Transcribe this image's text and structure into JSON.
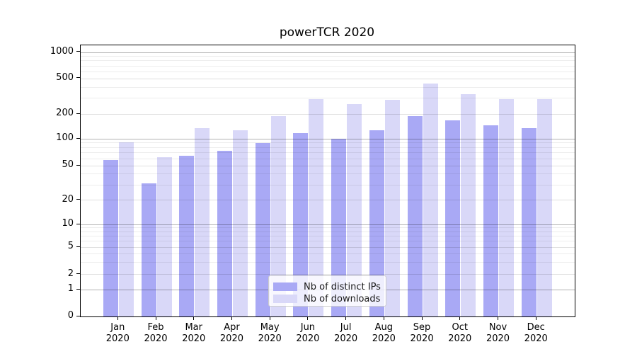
{
  "title": "powerTCR 2020",
  "chart_data": {
    "type": "bar",
    "title": "powerTCR 2020",
    "categories": [
      "Jan 2020",
      "Feb 2020",
      "Mar 2020",
      "Apr 2020",
      "May 2020",
      "Jun 2020",
      "Jul 2020",
      "Aug 2020",
      "Sep 2020",
      "Oct 2020",
      "Nov 2020",
      "Dec 2020"
    ],
    "series": [
      {
        "name": "Nb of distinct IPs",
        "color": "#a9a9f5",
        "values": [
          58,
          31,
          64,
          74,
          90,
          117,
          100,
          126,
          187,
          167,
          146,
          135
        ]
      },
      {
        "name": "Nb of downloads",
        "color": "#d9d8f8",
        "values": [
          92,
          62,
          135,
          128,
          190,
          295,
          260,
          290,
          440,
          334,
          293,
          292
        ]
      }
    ],
    "xlabel": "",
    "ylabel": "",
    "yscale": "symlog",
    "y_ticks": [
      0,
      1,
      2,
      5,
      10,
      20,
      50,
      100,
      200,
      500,
      1000
    ],
    "ylim": [
      0,
      1230
    ],
    "grid": true,
    "legend_position": "lower center"
  }
}
